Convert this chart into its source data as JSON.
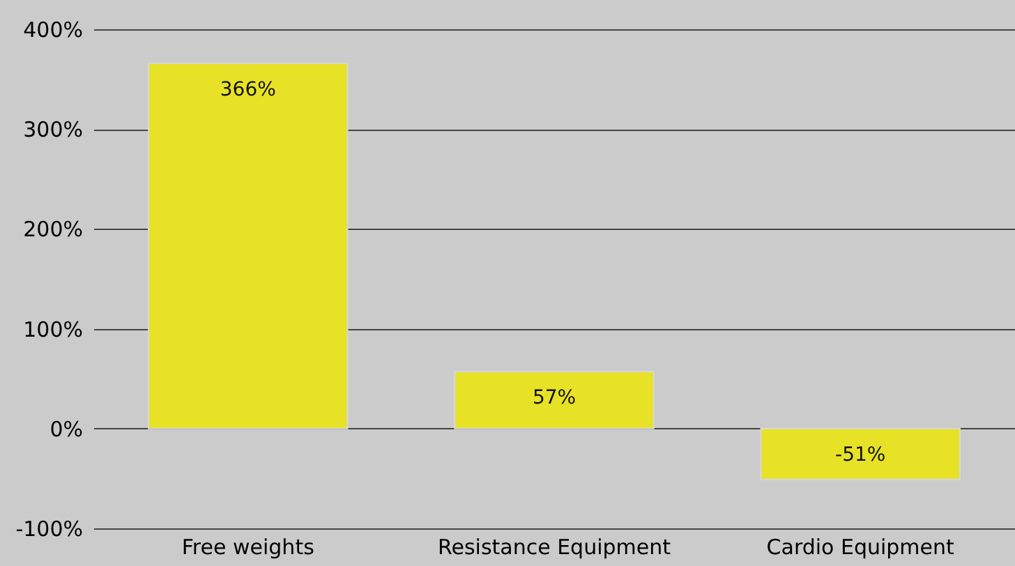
{
  "chart_data": {
    "type": "bar",
    "categories": [
      "Free weights",
      "Resistance Equipment",
      "Cardio Equipment"
    ],
    "values": [
      366,
      57,
      -51
    ],
    "color": "#e8e227",
    "value_labels": [
      "366%",
      "57%",
      "-51%"
    ],
    "ylim": [
      -100,
      400
    ],
    "yticks": [
      {
        "value": -100,
        "label": "-100%"
      },
      {
        "value": 0,
        "label": "0%"
      },
      {
        "value": 100,
        "label": "100%"
      },
      {
        "value": 200,
        "label": "200%"
      },
      {
        "value": 300,
        "label": "300%"
      },
      {
        "value": 400,
        "label": "400%"
      }
    ],
    "grid": "y"
  }
}
